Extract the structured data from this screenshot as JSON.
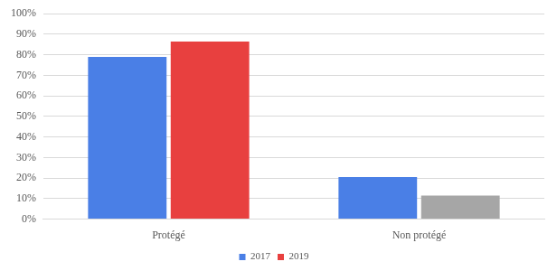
{
  "chart_data": {
    "type": "bar",
    "categories": [
      "Protégé",
      "Non protégé"
    ],
    "series": [
      {
        "name": "2017",
        "color": "#4a7fe6",
        "values": [
          79,
          20.5
        ]
      },
      {
        "name": "2019",
        "color": "#e8403f",
        "colors": [
          "#e8403f",
          "#a6a6a6"
        ],
        "values": [
          86.5,
          11.5
        ]
      }
    ],
    "ylim": [
      0,
      100
    ],
    "yticks": [
      {
        "value": 0,
        "label": "0%"
      },
      {
        "value": 10,
        "label": "10%"
      },
      {
        "value": 20,
        "label": "20%"
      },
      {
        "value": 30,
        "label": "30%"
      },
      {
        "value": 40,
        "label": "40%"
      },
      {
        "value": 50,
        "label": "50%"
      },
      {
        "value": 60,
        "label": "60%"
      },
      {
        "value": 70,
        "label": "70%"
      },
      {
        "value": 80,
        "label": "80%"
      },
      {
        "value": 90,
        "label": "90%"
      },
      {
        "value": 100,
        "label": "100%"
      }
    ],
    "grid": true,
    "legend": "bottom"
  }
}
